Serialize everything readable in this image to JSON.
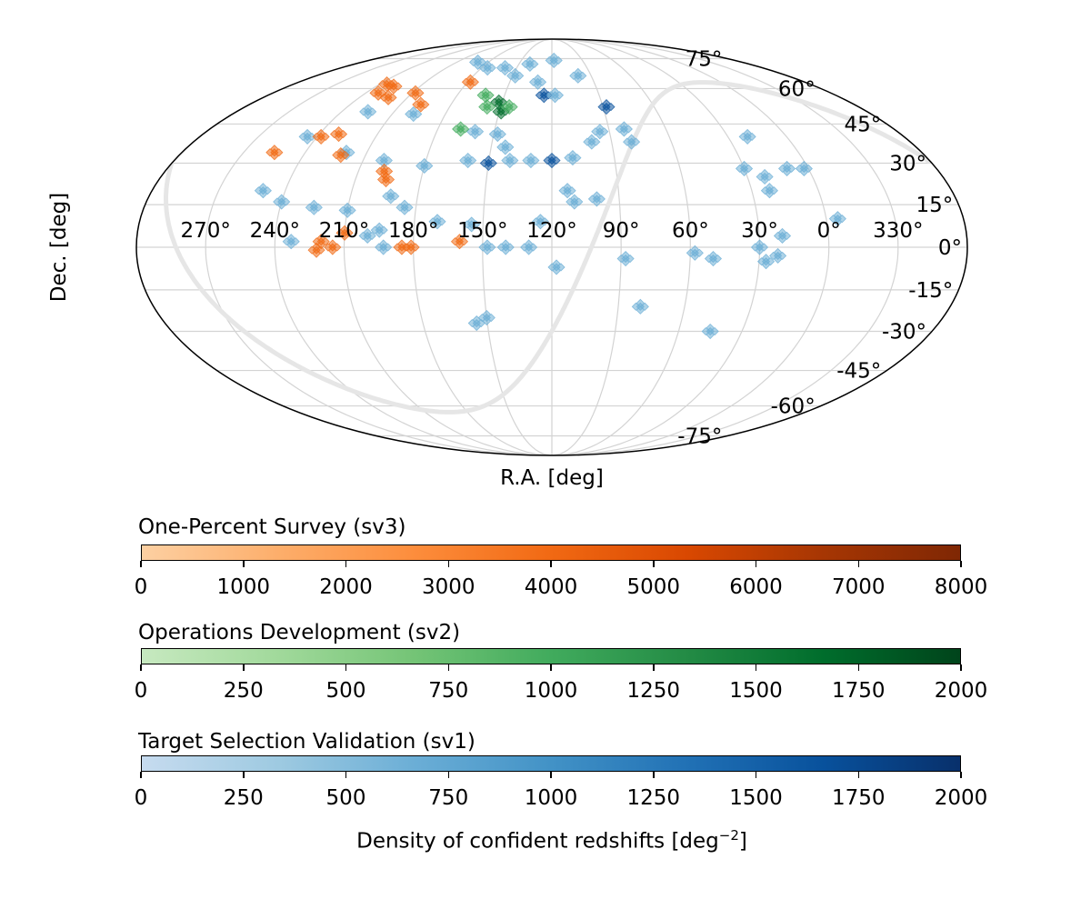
{
  "chart_data": [
    {
      "type": "scatter",
      "projection": "mollweide",
      "xlabel": "R.A. [deg]",
      "ylabel": "Dec. [deg]",
      "ra_tick_labels": [
        "270°",
        "240°",
        "210°",
        "180°",
        "150°",
        "120°",
        "90°",
        "60°",
        "30°",
        "0°",
        "330°"
      ],
      "ra_tick_values": [
        270,
        240,
        210,
        180,
        150,
        120,
        90,
        60,
        30,
        0,
        330
      ],
      "dec_tick_labels": [
        "75°",
        "60°",
        "45°",
        "30°",
        "15°",
        "0°",
        "-15°",
        "-30°",
        "-45°",
        "-60°",
        "-75°"
      ],
      "dec_tick_values": [
        75,
        60,
        45,
        30,
        15,
        0,
        -15,
        -30,
        -45,
        -60,
        -75
      ],
      "grid": true,
      "galactic_plane_color": "#e6e6e6",
      "series": [
        {
          "name": "Target Selection Validation (sv1)",
          "color": "#6baed6",
          "dark_color": "#08519c",
          "fields": [
            {
              "ra": 190,
              "dec": 73
            },
            {
              "ra": 175,
              "dec": 70
            },
            {
              "ra": 160,
              "dec": 70
            },
            {
              "ra": 140,
              "dec": 72
            },
            {
              "ra": 118,
              "dec": 74
            },
            {
              "ra": 100,
              "dec": 66
            },
            {
              "ra": 130,
              "dec": 63
            },
            {
              "ra": 148,
              "dec": 66
            },
            {
              "ra": 125,
              "dec": 57,
              "dark": true
            },
            {
              "ra": 118,
              "dec": 57
            },
            {
              "ra": 88,
              "dec": 52,
              "dark": true
            },
            {
              "ra": 225,
              "dec": 50
            },
            {
              "ra": 198,
              "dec": 49
            },
            {
              "ra": 245,
              "dec": 40
            },
            {
              "ra": 220,
              "dec": 34
            },
            {
              "ra": 200,
              "dec": 31
            },
            {
              "ra": 180,
              "dec": 29
            },
            {
              "ra": 160,
              "dec": 31
            },
            {
              "ra": 150,
              "dec": 30,
              "dark": true
            },
            {
              "ra": 140,
              "dec": 31
            },
            {
              "ra": 130,
              "dec": 31
            },
            {
              "ra": 120,
              "dec": 31,
              "dark": true
            },
            {
              "ra": 110,
              "dec": 32
            },
            {
              "ra": 100,
              "dec": 38
            },
            {
              "ra": 95,
              "dec": 42
            },
            {
              "ra": 80,
              "dec": 38
            },
            {
              "ra": 82,
              "dec": 43
            },
            {
              "ra": 148,
              "dec": 41
            },
            {
              "ra": 143,
              "dec": 36
            },
            {
              "ra": 160,
              "dec": 42
            },
            {
              "ra": 250,
              "dec": 20
            },
            {
              "ra": 240,
              "dec": 16
            },
            {
              "ra": 225,
              "dec": 14
            },
            {
              "ra": 210,
              "dec": 13
            },
            {
              "ra": 185,
              "dec": 14
            },
            {
              "ra": 192,
              "dec": 18
            },
            {
              "ra": 200,
              "dec": 4
            },
            {
              "ra": 195,
              "dec": 6
            },
            {
              "ra": 233,
              "dec": 2
            },
            {
              "ra": 193,
              "dec": 0
            },
            {
              "ra": 170,
              "dec": 9
            },
            {
              "ra": 155,
              "dec": 8
            },
            {
              "ra": 148,
              "dec": 0
            },
            {
              "ra": 140,
              "dec": 0
            },
            {
              "ra": 130,
              "dec": 0
            },
            {
              "ra": 125,
              "dec": 9
            },
            {
              "ra": 113,
              "dec": 20
            },
            {
              "ra": 110,
              "dec": 16
            },
            {
              "ra": 100,
              "dec": 17
            },
            {
              "ra": 118,
              "dec": -7
            },
            {
              "ra": 88,
              "dec": -4
            },
            {
              "ra": 80,
              "dec": -21
            },
            {
              "ra": 50,
              "dec": -4
            },
            {
              "ra": 58,
              "dec": -2
            },
            {
              "ra": 45,
              "dec": -30
            },
            {
              "ra": 30,
              "dec": 0
            },
            {
              "ra": 27,
              "dec": -5
            },
            {
              "ra": 22,
              "dec": -3
            },
            {
              "ra": 20,
              "dec": 4
            },
            {
              "ra": 30,
              "dec": 28
            },
            {
              "ra": 22,
              "dec": 25
            },
            {
              "ra": 22,
              "dec": 20
            },
            {
              "ra": 10,
              "dec": 28
            },
            {
              "ra": 2,
              "dec": 28
            },
            {
              "ra": 20,
              "dec": 40
            },
            {
              "ra": -5,
              "dec": 10
            },
            {
              "ra": 155,
              "dec": -27
            },
            {
              "ra": 150,
              "dec": -25
            }
          ]
        },
        {
          "name": "Operations Development (sv2)",
          "color": "#41ab5d",
          "dark_color": "#006d2c",
          "fields": [
            {
              "ra": 152,
              "dec": 54,
              "dark": true
            },
            {
              "ra": 158,
              "dec": 52
            },
            {
              "ra": 149,
              "dec": 50,
              "dark": true
            },
            {
              "ra": 162,
              "dec": 57
            },
            {
              "ra": 145,
              "dec": 52
            },
            {
              "ra": 168,
              "dec": 43
            }
          ]
        },
        {
          "name": "One-Percent Survey (sv3)",
          "color": "#f16913",
          "dark_color": "#a63603",
          "fields": [
            {
              "ra": 235,
              "dec": 62
            },
            {
              "ra": 228,
              "dec": 61
            },
            {
              "ra": 222,
              "dec": 56
            },
            {
              "ra": 232,
              "dec": 58
            },
            {
              "ra": 208,
              "dec": 58
            },
            {
              "ra": 198,
              "dec": 53
            },
            {
              "ra": 178,
              "dec": 63
            },
            {
              "ra": 238,
              "dec": 40
            },
            {
              "ra": 230,
              "dec": 41
            },
            {
              "ra": 255,
              "dec": 34
            },
            {
              "ra": 222,
              "dec": 33
            },
            {
              "ra": 198,
              "dec": 27
            },
            {
              "ra": 196,
              "dec": 24
            },
            {
              "ra": 220,
              "dec": 2
            },
            {
              "ra": 215,
              "dec": 0
            },
            {
              "ra": 222,
              "dec": -1
            },
            {
              "ra": 210,
              "dec": 5
            },
            {
              "ra": 185,
              "dec": 0
            },
            {
              "ra": 181,
              "dec": 0
            },
            {
              "ra": 160,
              "dec": 2
            }
          ]
        }
      ]
    },
    {
      "type": "colorbar",
      "title": "One-Percent Survey (sv3)",
      "ticks": [
        "0",
        "1000",
        "2000",
        "3000",
        "4000",
        "5000",
        "6000",
        "7000",
        "8000"
      ],
      "range": [
        0,
        8000
      ],
      "colors": [
        "#fdd0a2",
        "#fdae6b",
        "#fd8d3c",
        "#f16913",
        "#d94801",
        "#a63603",
        "#7f2704"
      ]
    },
    {
      "type": "colorbar",
      "title": "Operations Development (sv2)",
      "ticks": [
        "0",
        "250",
        "500",
        "750",
        "1000",
        "1250",
        "1500",
        "1750",
        "2000"
      ],
      "range": [
        0,
        2000
      ],
      "colors": [
        "#c7e9c0",
        "#a1d99b",
        "#74c476",
        "#41ab5d",
        "#238b45",
        "#006d2c",
        "#00441b"
      ]
    },
    {
      "type": "colorbar",
      "title": "Target Selection Validation (sv1)",
      "ticks": [
        "0",
        "250",
        "500",
        "750",
        "1000",
        "1250",
        "1500",
        "1750",
        "2000"
      ],
      "range": [
        0,
        2000
      ],
      "colors": [
        "#c6dbef",
        "#9ecae1",
        "#6baed6",
        "#4292c6",
        "#2171b5",
        "#08519c",
        "#08306b"
      ],
      "xlabel_main": "Density of confident redshifts [deg",
      "xlabel_sup": "−2",
      "xlabel_end": "]"
    }
  ]
}
